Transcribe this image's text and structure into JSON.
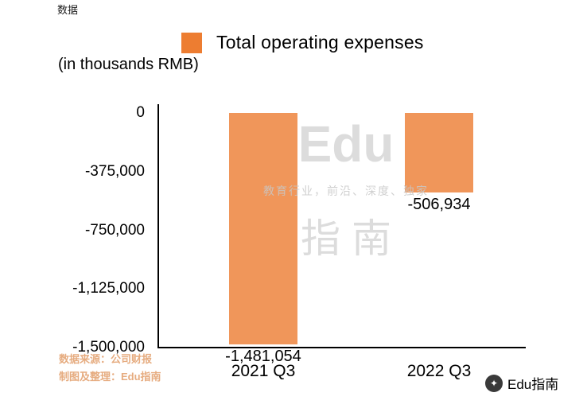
{
  "page": {
    "top_text": "数据"
  },
  "legend": {
    "label": "Total operating expenses",
    "color": "#ED7D31"
  },
  "subtitle": "(in thousands RMB)",
  "chart_data": {
    "type": "bar",
    "title": "Total operating expenses",
    "subtitle": "(in thousands RMB)",
    "categories": [
      "2021 Q3",
      "2022 Q3"
    ],
    "values": [
      -1481054,
      -506934
    ],
    "value_labels": [
      "-1,481,054",
      "-506,934"
    ],
    "ylim": [
      -1500000,
      0
    ],
    "yticks": [
      0,
      -375000,
      -750000,
      -1125000,
      -1500000
    ],
    "ytick_labels": [
      "0",
      "-375,000",
      "-750,000",
      "-1,125,000",
      "-1,500,000"
    ],
    "bar_color": "#F0965A",
    "grid": false,
    "legend_position": "top"
  },
  "watermark": {
    "line1": "Edu",
    "line2": "教育行业，前沿、深度、独家",
    "line3": "指南"
  },
  "footer": {
    "source_line1": "数据来源：公司财报",
    "source_line2": "制图及整理：Edu指南",
    "source_color": "#E6AC80",
    "brand": "Edu指南",
    "brand_icon": "✦"
  }
}
